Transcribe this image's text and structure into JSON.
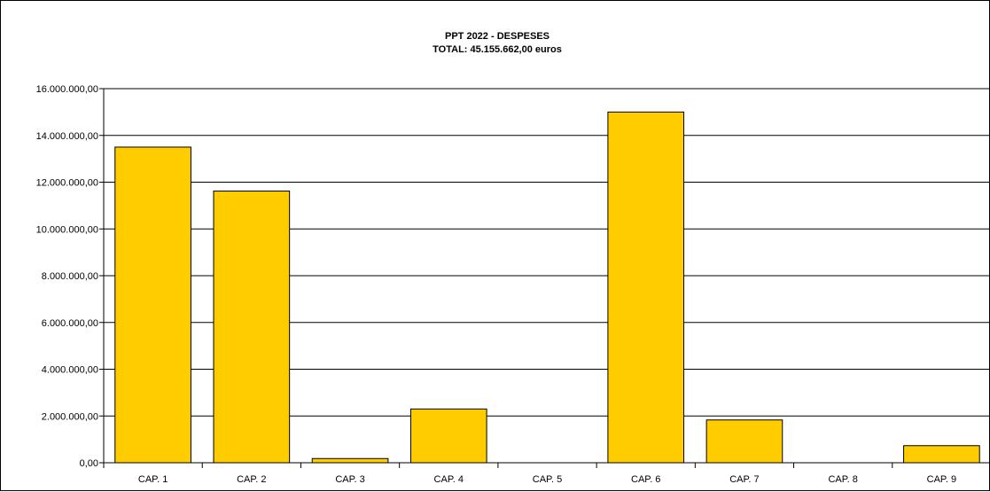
{
  "chart_data": {
    "type": "bar",
    "title": "PPT 2022 - DESPESES",
    "subtitle": "TOTAL: 45.155.662,00 euros",
    "categories": [
      "CAP. 1",
      "CAP. 2",
      "CAP. 3",
      "CAP. 4",
      "CAP. 5",
      "CAP. 6",
      "CAP. 7",
      "CAP. 8",
      "CAP. 9"
    ],
    "values": [
      13500000,
      11620000,
      180000,
      2300000,
      0,
      15000000,
      1830000,
      0,
      730000
    ],
    "ylim": [
      0,
      16000000
    ],
    "yticks": [
      0,
      2000000,
      4000000,
      6000000,
      8000000,
      10000000,
      12000000,
      14000000,
      16000000
    ],
    "ytick_labels": [
      "0,00",
      "2.000.000,00",
      "4.000.000,00",
      "6.000.000,00",
      "8.000.000,00",
      "10.000.000,00",
      "12.000.000,00",
      "14.000.000,00",
      "16.000.000,00"
    ],
    "xlabel": "",
    "ylabel": "",
    "grid": true,
    "legend": "none",
    "bar_color": "#FFCC00"
  }
}
